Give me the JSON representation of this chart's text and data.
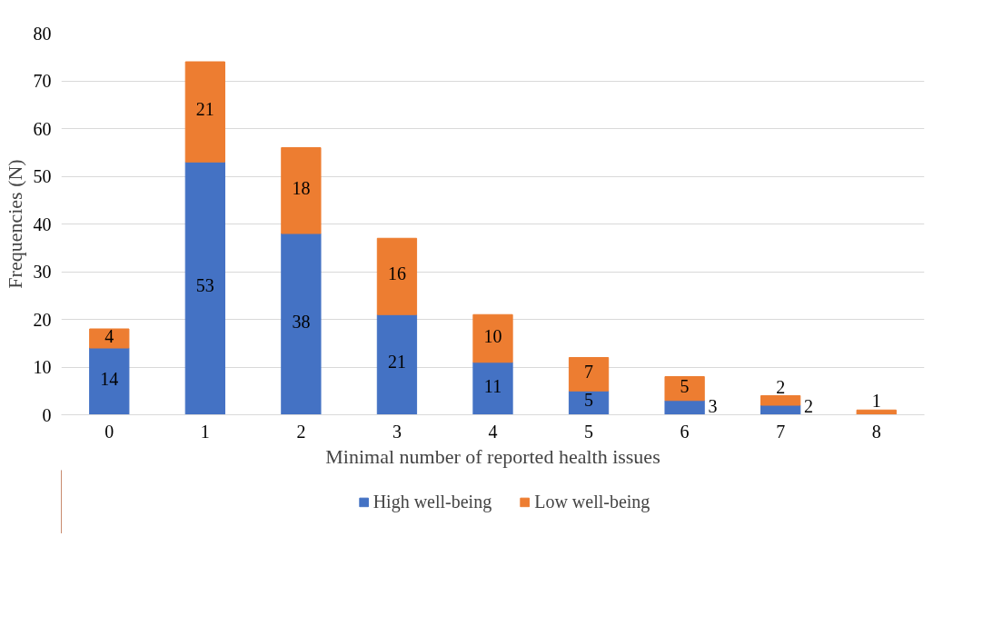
{
  "chart_data": {
    "type": "bar",
    "stacked": true,
    "xlabel": "Minimal number of reported health issues",
    "ylabel": "Frequencies (N)",
    "categories": [
      "0",
      "1",
      "2",
      "3",
      "4",
      "5",
      "6",
      "7",
      "8"
    ],
    "ylim": [
      0,
      80
    ],
    "yticks": [
      0,
      10,
      20,
      30,
      40,
      50,
      60,
      70,
      80
    ],
    "grid": "y",
    "legend": "bottom",
    "data_labels": true,
    "series": [
      {
        "name": "High well-being",
        "color": "#4472c4",
        "values": [
          14,
          53,
          38,
          21,
          11,
          5,
          3,
          2,
          null
        ]
      },
      {
        "name": "Low well-being",
        "color": "#ed7d31",
        "values": [
          4,
          21,
          18,
          16,
          10,
          7,
          5,
          2,
          1
        ]
      }
    ]
  }
}
